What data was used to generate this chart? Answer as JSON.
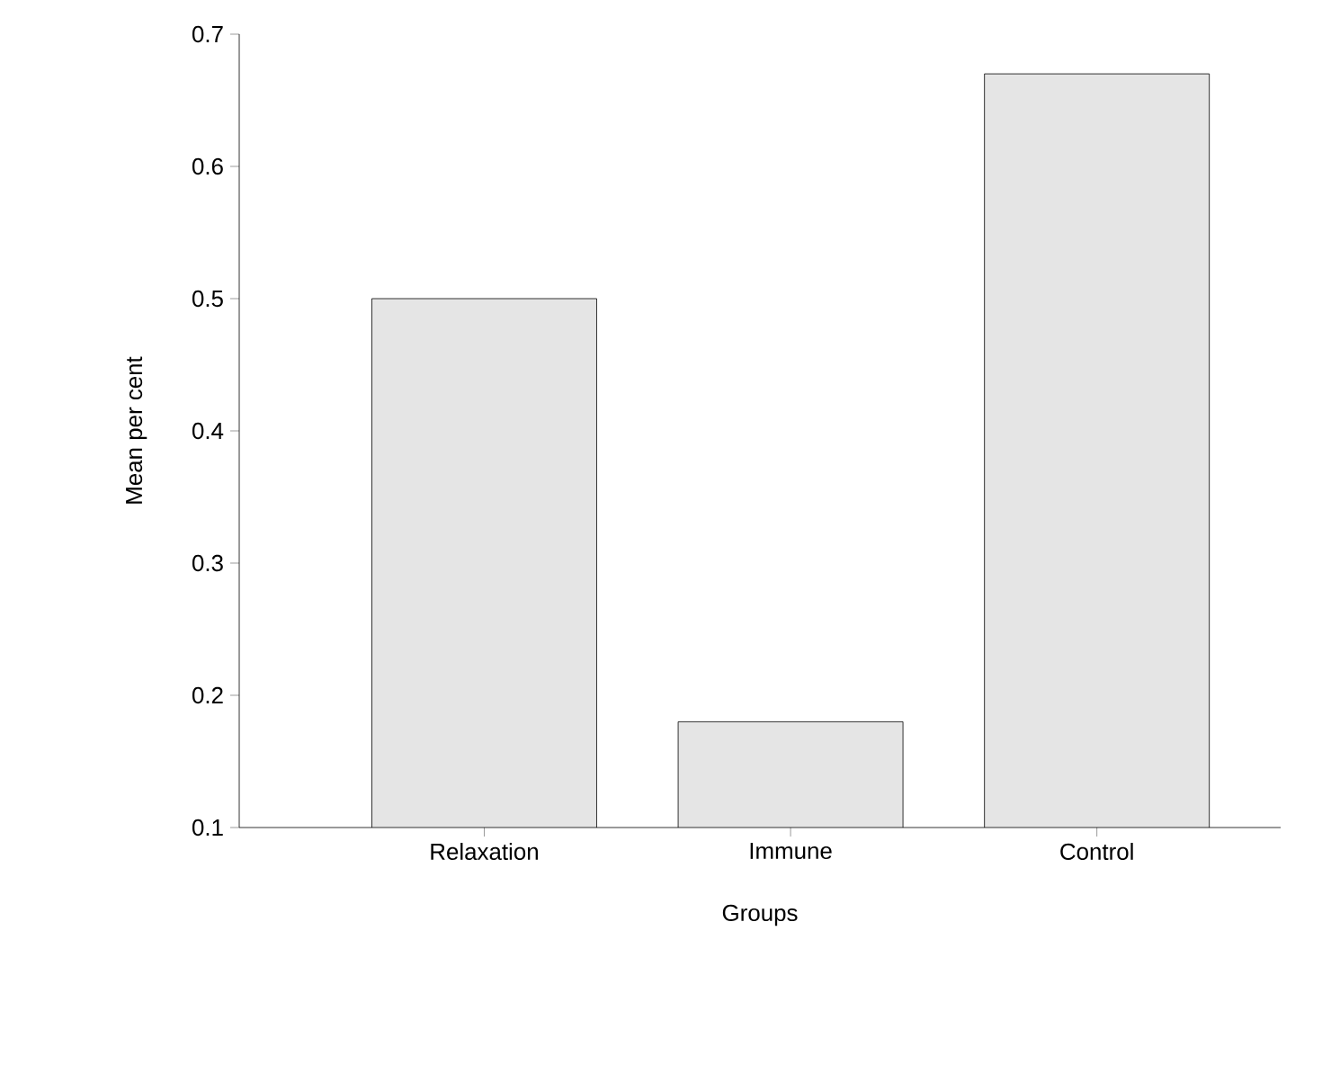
{
  "chart_data": {
    "type": "bar",
    "xlabel": "Groups",
    "ylabel": "Mean per cent",
    "categories": [
      "Relaxation",
      "Immune",
      "Control"
    ],
    "values": [
      0.5,
      0.18,
      0.67
    ],
    "color": "#e5e5e5",
    "ylim": [
      0.1,
      0.7
    ],
    "yticks": [
      0.1,
      0.2,
      0.3,
      0.4,
      0.5,
      0.6,
      0.7
    ],
    "grid": false
  }
}
